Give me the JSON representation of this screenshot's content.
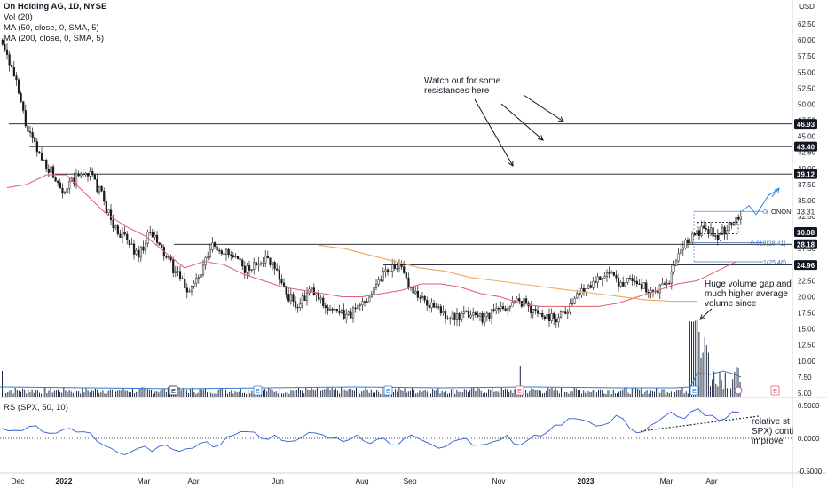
{
  "header": {
    "title": "On Holding AG, 1D, NYSE",
    "vol": "Vol (20)",
    "ma50": "MA (50, close, 0, SMA, 5)",
    "ma200": "MA (200, close, 0, SMA, 5)",
    "rs": "RS (SPX, 50, 10)",
    "currency": "USD"
  },
  "annotations": {
    "resistance_note": "Watch out for some\nresistances here",
    "volume_note": "Huge volume gap and\nmuch higher average\nvolume since",
    "rs_note": "relative st\nSPX) conti\nimprove",
    "fib_0": "0(",
    "fib_0618": "0.618(28.41)",
    "fib_1": "1(25.46)",
    "ticker": "ONON",
    "earnings_marker": "E"
  },
  "colors": {
    "ma50": "#e35b6f",
    "ma200": "#f2a663",
    "volume": "#1f2a44",
    "volume_ma": "#2f7fd6",
    "rs_line": "#2f5fd0",
    "fib": "#3a6fc9",
    "candle": "#1a1a1a",
    "projection": "#2f8be0"
  },
  "chart_data": [
    {
      "type": "candlestick",
      "title": "On Holding AG, 1D, NYSE",
      "ylim": [
        3.5,
        65
      ],
      "y_ticks": [
        "62.50",
        "60.00",
        "57.50",
        "55.00",
        "52.50",
        "50.00",
        "47.50",
        "45.00",
        "42.50",
        "40.00",
        "37.50",
        "35.00",
        "32.50",
        "30.00",
        "27.50",
        "25.00",
        "22.50",
        "20.00",
        "17.50",
        "15.00",
        "12.50",
        "10.00",
        "7.50",
        "5.00"
      ],
      "x_ticks": [
        "Dec",
        "2022",
        "Mar",
        "Apr",
        "Jun",
        "Aug",
        "Sep",
        "Nov",
        "2023",
        "Mar",
        "Apr"
      ],
      "close_path": [
        [
          "Nov",
          60.0
        ],
        [
          "Nov",
          54.0
        ],
        [
          "Dec",
          46.0
        ],
        [
          "Dec",
          42.0
        ],
        [
          "Dec",
          39.5
        ],
        [
          "Dec",
          36.5
        ],
        [
          "Dec",
          38.5
        ],
        [
          "2022",
          39.5
        ],
        [
          "2022",
          36.0
        ],
        [
          "Jan",
          31.0
        ],
        [
          "Jan",
          29.0
        ],
        [
          "Feb",
          26.5
        ],
        [
          "Feb",
          30.0
        ],
        [
          "Feb",
          27.0
        ],
        [
          "Mar",
          24.0
        ],
        [
          "Mar",
          21.0
        ],
        [
          "Mar",
          23.0
        ],
        [
          "Apr",
          28.0
        ],
        [
          "Apr",
          27.0
        ],
        [
          "Apr",
          25.5
        ],
        [
          "May",
          24.0
        ],
        [
          "May",
          26.0
        ],
        [
          "May",
          25.5
        ],
        [
          "Jun",
          20.5
        ],
        [
          "Jun",
          18.5
        ],
        [
          "Jun",
          21.0
        ],
        [
          "Jul",
          19.0
        ],
        [
          "Jul",
          17.5
        ],
        [
          "Jul",
          17.0
        ],
        [
          "Jul",
          18.5
        ],
        [
          "Aug",
          21.0
        ],
        [
          "Aug",
          24.0
        ],
        [
          "Aug",
          25.2
        ],
        [
          "Aug",
          22.0
        ],
        [
          "Sep",
          19.5
        ],
        [
          "Sep",
          18.5
        ],
        [
          "Sep",
          17.2
        ],
        [
          "Oct",
          16.5
        ],
        [
          "Oct",
          17.5
        ],
        [
          "Oct",
          16.8
        ],
        [
          "Nov",
          17.8
        ],
        [
          "Nov",
          18.5
        ],
        [
          "Nov",
          19.5
        ],
        [
          "Dec",
          18.0
        ],
        [
          "Dec",
          17.0
        ],
        [
          "Dec",
          16.8
        ],
        [
          "2023",
          18.5
        ],
        [
          "Jan",
          21.0
        ],
        [
          "Jan",
          22.5
        ],
        [
          "Feb",
          23.8
        ],
        [
          "Feb",
          22.0
        ],
        [
          "Mar",
          23.0
        ],
        [
          "Mar",
          21.5
        ],
        [
          "Mar",
          20.5
        ],
        [
          "Mar",
          22.0
        ],
        [
          "Mar",
          27.0
        ],
        [
          "Mar",
          29.5
        ],
        [
          "Apr",
          30.5
        ],
        [
          "Apr",
          29.5
        ],
        [
          "Apr",
          31.0
        ],
        [
          "Apr",
          33.3
        ]
      ],
      "series": [
        {
          "name": "MA (50, close, 0, SMA, 5)",
          "values": [
            37.0,
            37.5,
            39.0,
            39.0,
            36.0,
            33.0,
            31.0,
            29.5,
            27.0,
            24.5,
            25.5,
            25.0,
            23.5,
            22.5,
            21.5,
            21.0,
            20.5,
            20.0,
            20.0,
            20.5,
            21.0,
            22.0,
            22.0,
            21.5,
            20.5,
            20.0,
            19.0,
            18.5,
            18.5,
            18.5,
            18.5,
            19.0,
            20.0,
            21.0,
            22.0,
            22.5,
            24.0,
            25.5
          ]
        },
        {
          "name": "MA (200, close, 0, SMA, 5)",
          "values": [
            28.0,
            27.5,
            26.5,
            25.5,
            24.5,
            24.0,
            23.0,
            22.5,
            22.0,
            21.5,
            21.0,
            20.5,
            20.0,
            19.5,
            19.3,
            19.3
          ]
        }
      ],
      "horizontal_levels": [
        "46.93",
        "43.40",
        "39.12",
        "30.08",
        "28.18",
        "24.96"
      ],
      "price_badges": [
        "46.93",
        "43.40",
        "39.12",
        "33.31",
        "30.08",
        "28.18",
        "24.96"
      ],
      "fibonacci": [
        {
          "label": "0(",
          "value": 33.31
        },
        {
          "label": "0.618(28.41)",
          "value": 28.41
        },
        {
          "label": "1(25.46)",
          "value": 25.46
        }
      ],
      "volume": {
        "name": "Vol (20)",
        "note": "volume spike near Mar 2023 with higher average afterwards"
      }
    },
    {
      "type": "line",
      "title": "RS (SPX, 50, 10)",
      "ylim": [
        -0.5,
        0.5
      ],
      "y_ticks": [
        "0.5000",
        "0.0000",
        "-0.5000"
      ],
      "values": [
        0.15,
        0.12,
        0.18,
        0.1,
        0.08,
        0.15,
        0.1,
        -0.05,
        -0.15,
        -0.25,
        -0.15,
        -0.2,
        -0.1,
        -0.2,
        -0.15,
        -0.05,
        -0.1,
        0.05,
        0.1,
        0.0,
        0.05,
        -0.05,
        0.02,
        0.08,
        0.0,
        -0.05,
        0.05,
        -0.08,
        0.0,
        -0.1,
        0.05,
        -0.05,
        -0.15,
        -0.05,
        0.0,
        -0.1,
        -0.05,
        0.05,
        -0.1,
        0.05,
        0.1,
        0.2,
        0.3,
        0.25,
        0.2,
        0.35,
        0.15,
        0.1,
        0.25,
        0.4,
        0.3,
        0.45,
        0.35,
        0.3,
        0.4
      ]
    }
  ]
}
